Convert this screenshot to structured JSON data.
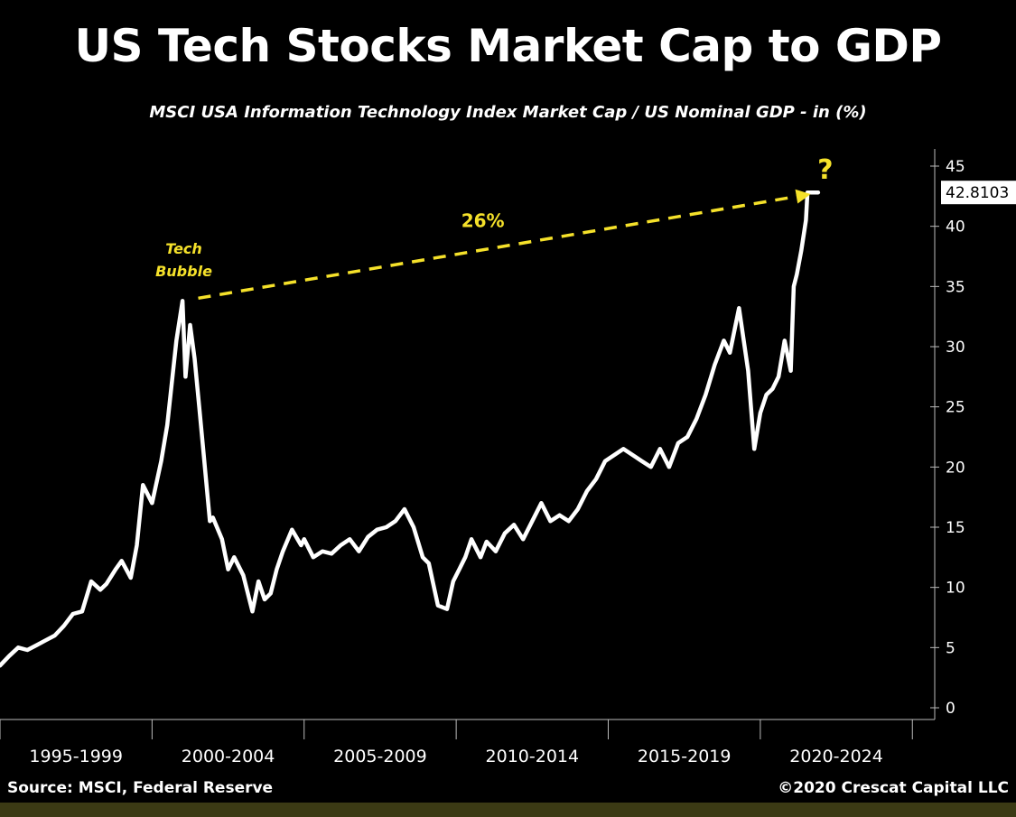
{
  "footer": {
    "source": "Source: MSCI, Federal Reserve",
    "copyright": "©2020 Crescat Capital LLC"
  },
  "colors": {
    "background": "#000000",
    "line": "#ffffff",
    "annotation": "#f5e12a",
    "band": "#3b3a14"
  },
  "chart_data": {
    "type": "line",
    "title": "US Tech Stocks Market Cap to GDP",
    "subtitle": "MSCI USA Information Technology Index Market Cap / US Nominal GDP - in (%)",
    "xlabel": "",
    "ylabel": "",
    "xlim": [
      1994.0,
      2024.2
    ],
    "ylim": [
      0,
      45
    ],
    "y_ticks": [
      0,
      5,
      10,
      15,
      20,
      25,
      30,
      35,
      40,
      45
    ],
    "x_period_labels": [
      "1995-1999",
      "2000-2004",
      "2005-2009",
      "2010-2014",
      "2015-2019",
      "2020-2024"
    ],
    "x_period_boundaries": [
      1994.0,
      1999.0,
      2004.0,
      2009.0,
      2014.0,
      2019.0,
      2024.0
    ],
    "y_axis_position": "right",
    "legend": "none",
    "grid": false,
    "last_value_label": "42.8103",
    "series": [
      {
        "x": [
          1994.0,
          1994.3,
          1994.6,
          1994.9,
          1995.2,
          1995.5,
          1995.8,
          1996.1,
          1996.4,
          1996.7,
          1997.0,
          1997.3,
          1997.5,
          1997.8,
          1998.0,
          1998.3,
          1998.5,
          1998.7,
          1999.0,
          1999.3,
          1999.5,
          1999.8,
          2000.0,
          2000.1,
          2000.25,
          2000.4,
          2000.55,
          2000.7,
          2000.9,
          2001.0,
          2001.3,
          2001.5,
          2001.7,
          2002.0,
          2002.3,
          2002.5,
          2002.7,
          2002.9,
          2003.1,
          2003.3,
          2003.6,
          2003.9,
          2004.0,
          2004.3,
          2004.6,
          2004.9,
          2005.2,
          2005.5,
          2005.8,
          2006.1,
          2006.4,
          2006.7,
          2007.0,
          2007.3,
          2007.6,
          2007.9,
          2008.1,
          2008.4,
          2008.7,
          2008.9,
          2009.1,
          2009.3,
          2009.5,
          2009.8,
          2010.0,
          2010.3,
          2010.6,
          2010.9,
          2011.2,
          2011.5,
          2011.8,
          2012.1,
          2012.4,
          2012.7,
          2013.0,
          2013.3,
          2013.6,
          2013.9,
          2014.2,
          2014.5,
          2014.8,
          2015.1,
          2015.4,
          2015.7,
          2016.0,
          2016.3,
          2016.6,
          2016.9,
          2017.2,
          2017.5,
          2017.8,
          2018.0,
          2018.3,
          2018.6,
          2018.8,
          2019.0,
          2019.2,
          2019.4,
          2019.6,
          2019.8,
          2020.0,
          2020.1,
          2020.2,
          2020.35,
          2020.5,
          2020.55,
          2020.65,
          2020.75,
          2020.85,
          2020.9
        ],
        "values": [
          3.5,
          4.3,
          5.0,
          4.8,
          5.2,
          5.6,
          6.0,
          6.8,
          7.8,
          8.0,
          10.5,
          9.8,
          10.3,
          11.5,
          12.2,
          10.8,
          13.5,
          18.5,
          17.0,
          20.5,
          23.5,
          30.5,
          33.8,
          27.5,
          31.8,
          29.0,
          25.0,
          21.0,
          15.5,
          15.8,
          14.0,
          11.5,
          12.5,
          11.0,
          8.0,
          10.5,
          9.0,
          9.5,
          11.5,
          13.0,
          14.8,
          13.5,
          14.0,
          12.5,
          13.0,
          12.8,
          13.5,
          14.0,
          13.0,
          14.2,
          14.8,
          15.0,
          15.5,
          16.5,
          15.0,
          12.5,
          12.0,
          8.5,
          8.2,
          10.5,
          11.5,
          12.5,
          14.0,
          12.5,
          13.8,
          13.0,
          14.5,
          15.2,
          14.0,
          15.5,
          17.0,
          15.5,
          16.0,
          15.5,
          16.5,
          18.0,
          19.0,
          20.5,
          21.0,
          21.5,
          21.0,
          20.5,
          20.0,
          21.5,
          20.0,
          22.0,
          22.5,
          24.0,
          26.0,
          28.5,
          30.5,
          29.5,
          33.2,
          28.0,
          21.5,
          24.5,
          26.0,
          26.5,
          27.5,
          30.5,
          28.0,
          35.0,
          36.0,
          38.0,
          40.5,
          42.8103,
          42.8103,
          42.8103,
          42.8103,
          42.8103
        ]
      }
    ],
    "annotations": {
      "bubble_label_line1": "Tech",
      "bubble_label_line2": "Bubble",
      "arrow_label": "26%",
      "question_mark": "?",
      "arrow_from": {
        "x": 2000.4,
        "y": 33.8
      },
      "arrow_to": {
        "x": 2020.6,
        "y": 42.8
      }
    }
  }
}
